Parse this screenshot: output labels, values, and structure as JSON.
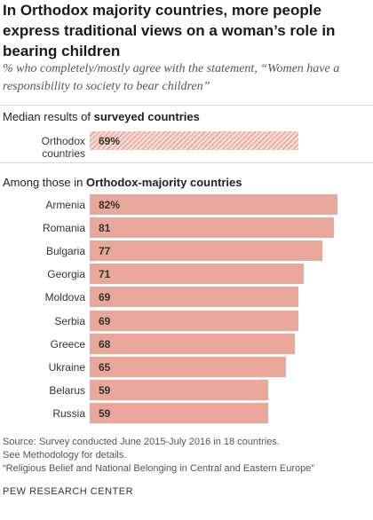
{
  "title": "In Orthodox majority countries, more people express traditional views on a woman’s role in bearing children",
  "subtitle": "% who completely/mostly agree with the statement, “Women have a responsibility to society to bear children”",
  "median_section": {
    "prefix": "Median results of ",
    "bold": "surveyed countries"
  },
  "orthodox_section": {
    "prefix": "Among those in ",
    "bold": "Orthodox-majority countries"
  },
  "colors": {
    "bar": "#e8a79a",
    "hatch_bg": "#f7ddd8",
    "hatch_line": "#e8a79a"
  },
  "chart_data": {
    "type": "bar",
    "orientation": "horizontal",
    "xlim": [
      0,
      100
    ],
    "median": {
      "category": "Orthodox countries",
      "value": 69,
      "label": "69%"
    },
    "categories": [
      "Armenia",
      "Romania",
      "Bulgaria",
      "Georgia",
      "Moldova",
      "Serbia",
      "Greece",
      "Ukraine",
      "Belarus",
      "Russia"
    ],
    "values": [
      82,
      81,
      77,
      71,
      69,
      69,
      68,
      65,
      59,
      59
    ],
    "value_labels": [
      "82%",
      "81",
      "77",
      "71",
      "69",
      "69",
      "68",
      "65",
      "59",
      "59"
    ]
  },
  "source": "Source: Survey conducted June 2015-July 2016 in 18 countries.",
  "see_methodology": "See Methodology for details.",
  "report_title": "“Religious Belief and National Belonging in Central and Eastern Europe”",
  "brand": "PEW RESEARCH CENTER"
}
